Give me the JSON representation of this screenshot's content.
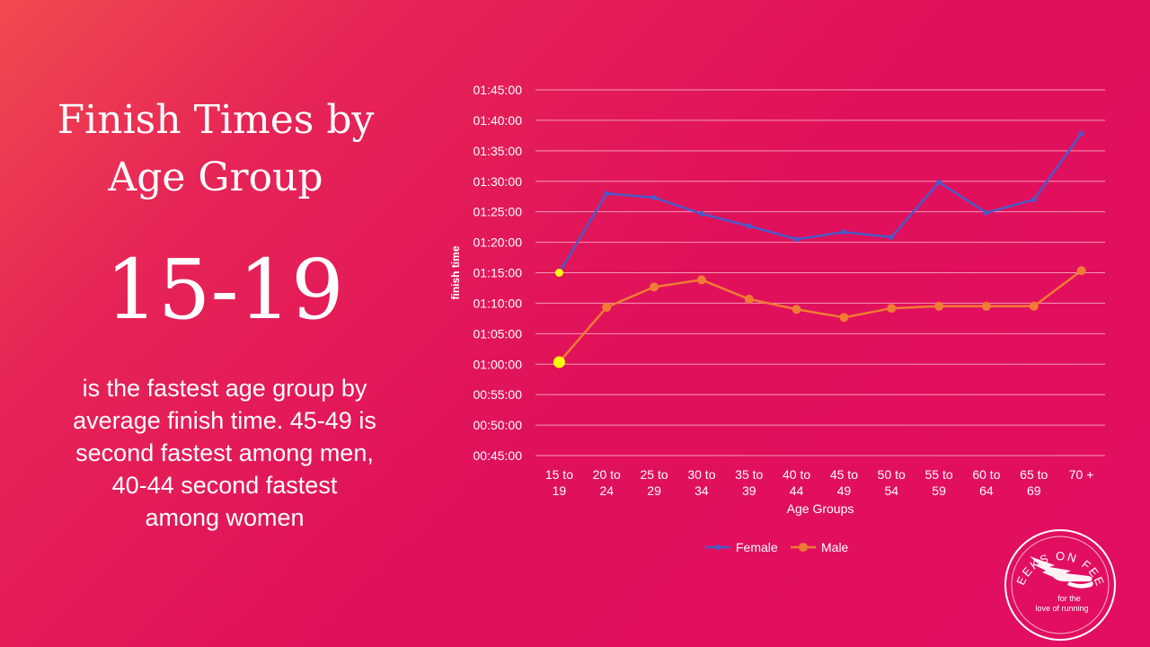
{
  "slide": {
    "title_lines": [
      "Finish Times by",
      "Age Group"
    ],
    "highlight": "15-19",
    "description_lines": [
      "is the fastest age group by",
      "average finish time. 45-49 is",
      "second fastest among men,",
      "40-44 second fastest",
      "among women"
    ]
  },
  "logo": {
    "top_text": "GEEKS ON FEET",
    "line1": "for the",
    "line2": "love of running"
  },
  "colors": {
    "female": "#4a5bc8",
    "male": "#f07b34",
    "highlight": "#ffff00",
    "grid": "#f49ab5"
  },
  "chart_data": {
    "type": "line",
    "xlabel": "Age Groups",
    "ylabel": "finish time",
    "y_ticks": [
      "00:45:00",
      "00:50:00",
      "00:55:00",
      "01:00:00",
      "01:05:00",
      "01:10:00",
      "01:15:00",
      "01:20:00",
      "01:25:00",
      "01:30:00",
      "01:35:00",
      "01:40:00",
      "01:45:00"
    ],
    "ylim": [
      "00:45:00",
      "01:45:00"
    ],
    "categories": [
      [
        "15 to",
        "19"
      ],
      [
        "20 to",
        "24"
      ],
      [
        "25 to",
        "29"
      ],
      [
        "30 to",
        "34"
      ],
      [
        "35 to",
        "39"
      ],
      [
        "40 to",
        "44"
      ],
      [
        "45 to",
        "49"
      ],
      [
        "50 to",
        "54"
      ],
      [
        "55 to",
        "59"
      ],
      [
        "60 to",
        "64"
      ],
      [
        "65 to",
        "69"
      ],
      [
        "70 +",
        ""
      ]
    ],
    "legend_position": "bottom",
    "series": [
      {
        "name": "Female",
        "values": [
          "01:15:00",
          "01:28:00",
          "01:27:20",
          "01:24:40",
          "01:22:40",
          "01:20:30",
          "01:21:40",
          "01:20:50",
          "01:29:50",
          "01:24:50",
          "01:27:00",
          "01:37:50"
        ]
      },
      {
        "name": "Male",
        "values": [
          "01:00:20",
          "01:09:20",
          "01:12:40",
          "01:13:50",
          "01:10:40",
          "01:09:00",
          "01:07:40",
          "01:09:10",
          "01:09:30",
          "01:09:30",
          "01:09:30",
          "01:15:20"
        ]
      }
    ],
    "highlighted_category_index": 0
  }
}
